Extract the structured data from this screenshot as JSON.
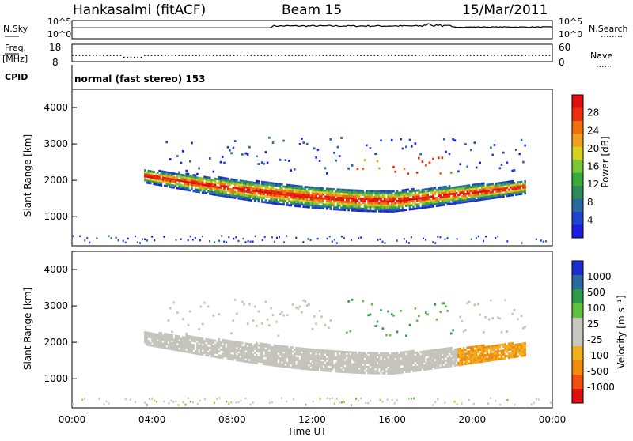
{
  "header": {
    "station": "Hankasalmi (fitACF)",
    "beam": "Beam 15",
    "date": "15/Mar/2011"
  },
  "status": {
    "nsky_label": "N.Sky",
    "nsearch_label": "N.Search",
    "sky_top": "10^5",
    "sky_bottom": "10^0",
    "search_top": "10^5",
    "search_bottom": "10^0",
    "freq_label_1": "Freq.",
    "freq_label_2": "[MHz]",
    "freq_top": "18",
    "freq_bottom": "8",
    "nave_label": "Nave",
    "nave_top": "60",
    "nave_bottom": "0",
    "cpid_label": "CPID",
    "cpid_text": "normal (fast stereo) 153"
  },
  "colors": {
    "power": [
      "#1e1edc",
      "#2244cc",
      "#2a6aa0",
      "#2e8a5a",
      "#3aaa3a",
      "#78c83a",
      "#d8d020",
      "#f0a020",
      "#f07010",
      "#e83010",
      "#e01010"
    ],
    "velocity": [
      "#e01010",
      "#f05010",
      "#f08c10",
      "#f0b020",
      "#c8c8c0",
      "#c8c8c0",
      "#60c040",
      "#2e9a4a",
      "#2a6aa0",
      "#1e2ecc"
    ],
    "scatter_gray": "#c4c4bc"
  },
  "chart_data": [
    {
      "type": "line",
      "title": "N.Sky",
      "x": [
        "00:00",
        "04:00",
        "08:00",
        "12:00",
        "16:00",
        "20:00",
        "00:00"
      ],
      "note_series": [
        {
          "name": "N.Sky",
          "values": [
            3.0,
            3.0,
            3.2,
            3.4,
            4.2,
            3.6,
            3.0
          ]
        }
      ],
      "ylim": [
        0,
        5
      ]
    },
    {
      "type": "scatter",
      "title": "Freq. [MHz]",
      "series": [
        {
          "name": "Freq.",
          "values": [
            12.0,
            11.0,
            12.0,
            12.0,
            12.0,
            12.0,
            12.0
          ]
        }
      ],
      "ylim": [
        8,
        18
      ]
    },
    {
      "type": "heatmap",
      "ylabel": "Slant Range [km]",
      "colorbar_label": "Power [dB]",
      "colorbar_ticks": [
        "4",
        "8",
        "12",
        "16",
        "20",
        "24",
        "28"
      ],
      "x_ticks": [
        "00:00",
        "04:00",
        "08:00",
        "12:00",
        "16:00",
        "20:00",
        "00:00"
      ],
      "y_ticks": [
        "1000",
        "2000",
        "3000",
        "4000"
      ],
      "ylim": [
        200,
        4500
      ],
      "xlim_hours": [
        0,
        24
      ]
    },
    {
      "type": "heatmap",
      "ylabel": "Slant Range [km]",
      "xlabel": "Time UT",
      "colorbar_label": "Velocity [m s⁻¹]",
      "colorbar_ticks": [
        "1000",
        "500",
        "100",
        "25",
        "-25",
        "-100",
        "-500",
        "-1000"
      ],
      "x_ticks": [
        "00:00",
        "04:00",
        "08:00",
        "12:00",
        "16:00",
        "20:00",
        "00:00"
      ],
      "y_ticks": [
        "1000",
        "2000",
        "3000",
        "4000"
      ],
      "ylim": [
        200,
        4500
      ],
      "xlim_hours": [
        0,
        24
      ]
    }
  ]
}
